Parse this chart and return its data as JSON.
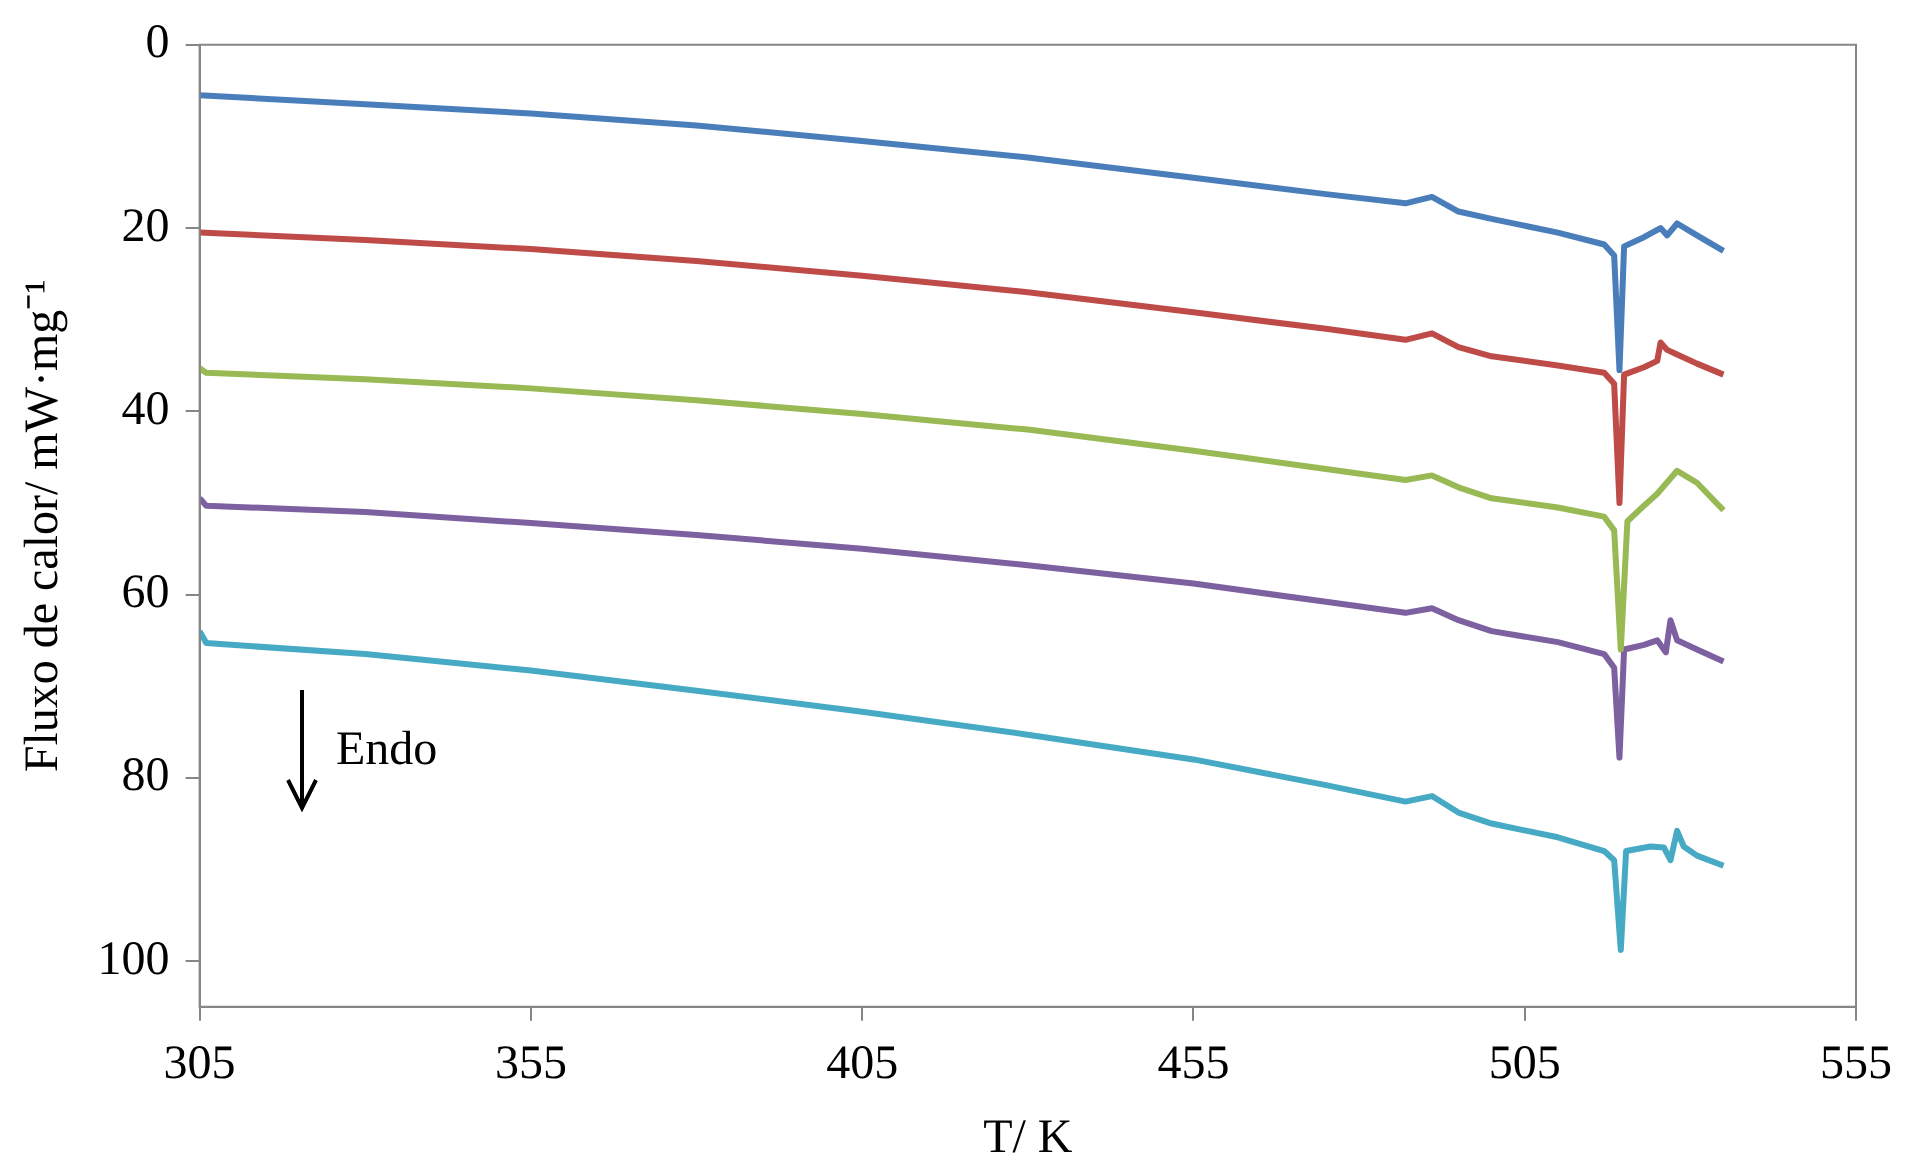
{
  "chart_data": {
    "type": "line",
    "xlabel": "T/ K",
    "ylabel": "Fluxo de calor/ mW·mg⁻¹",
    "annotations": [
      "Endo"
    ],
    "xlim": [
      305,
      555
    ],
    "xticks": [
      305,
      355,
      405,
      455,
      505,
      555
    ],
    "ylim": [
      105,
      0
    ],
    "yticks": [
      0,
      20,
      40,
      60,
      80,
      100
    ],
    "grid": false,
    "legend": false,
    "marker": "none",
    "line_style": "solid",
    "series": [
      {
        "color": "#4a7ebb",
        "x": [
          305,
          330,
          355,
          380,
          405,
          430,
          455,
          475,
          487,
          491,
          495,
          500,
          510,
          517,
          518.5,
          519.3,
          520,
          523,
          525.5,
          526.5,
          528,
          531,
          535
        ],
        "values": [
          5.5,
          6.5,
          7.5,
          8.8,
          10.5,
          12.3,
          14.5,
          16.3,
          17.3,
          16.6,
          18.2,
          19,
          20.5,
          21.8,
          23,
          35.5,
          22,
          21,
          20,
          20.8,
          19.5,
          20.8,
          22.5
        ]
      },
      {
        "color": "#be4b48",
        "x": [
          305,
          330,
          355,
          380,
          405,
          430,
          455,
          475,
          487,
          491,
          495,
          500,
          510,
          517,
          518.5,
          519.3,
          520,
          523,
          525,
          525.5,
          526.5,
          528,
          531,
          535
        ],
        "values": [
          20.5,
          21.3,
          22.3,
          23.6,
          25.2,
          27,
          29.2,
          31,
          32.2,
          31.5,
          33,
          34,
          35,
          35.8,
          37,
          50,
          36,
          35.2,
          34.5,
          32.5,
          33.3,
          33.8,
          34.8,
          36
        ]
      },
      {
        "color": "#98b954",
        "x": [
          305,
          306,
          330,
          355,
          380,
          405,
          430,
          455,
          475,
          487,
          491,
          495,
          500,
          510,
          517,
          518.5,
          519.5,
          520.5,
          523,
          525,
          528,
          531,
          535
        ],
        "values": [
          35.3,
          35.8,
          36.5,
          37.5,
          38.8,
          40.3,
          42,
          44.3,
          46.3,
          47.5,
          47,
          48.3,
          49.5,
          50.5,
          51.5,
          53,
          66,
          52,
          50.3,
          49,
          46.5,
          47.8,
          50.8
        ]
      },
      {
        "color": "#7d60a0",
        "x": [
          305,
          306,
          330,
          355,
          380,
          405,
          430,
          455,
          475,
          487,
          491,
          495,
          500,
          510,
          517,
          518.5,
          519.3,
          520,
          523,
          525,
          526.3,
          527,
          528,
          531,
          535
        ],
        "values": [
          49.5,
          50.3,
          51,
          52.2,
          53.5,
          55,
          56.8,
          58.8,
          60.8,
          62,
          61.5,
          62.8,
          64,
          65.2,
          66.5,
          68,
          77.8,
          66,
          65.5,
          65,
          66.3,
          62.8,
          65,
          66,
          67.3
        ]
      },
      {
        "color": "#46aac5",
        "x": [
          305,
          306,
          330,
          355,
          380,
          405,
          430,
          455,
          475,
          487,
          491,
          495,
          500,
          510,
          517,
          518.5,
          519.5,
          520.3,
          524,
          526,
          527,
          528,
          529,
          531,
          535
        ],
        "values": [
          64,
          65.3,
          66.5,
          68.3,
          70.5,
          72.8,
          75.3,
          78,
          80.8,
          82.6,
          82,
          83.8,
          85,
          86.5,
          88,
          89,
          98.8,
          88,
          87.5,
          87.6,
          89,
          85.8,
          87.5,
          88.5,
          89.6
        ]
      }
    ]
  }
}
